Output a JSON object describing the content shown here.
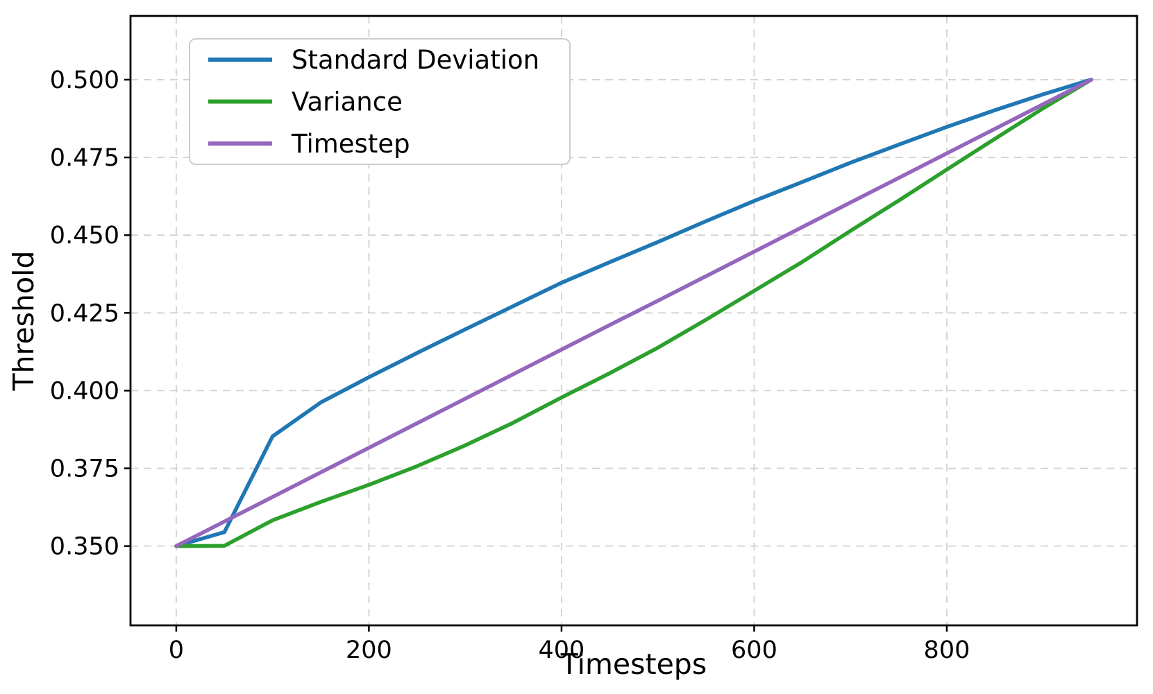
{
  "chart_data": {
    "type": "line",
    "title": "",
    "xlabel": "Timesteps",
    "ylabel": "Threshold",
    "x": [
      0,
      50,
      100,
      150,
      200,
      250,
      300,
      350,
      400,
      450,
      500,
      550,
      600,
      650,
      700,
      750,
      800,
      850,
      900,
      950
    ],
    "series": [
      {
        "name": "Standard Deviation",
        "color": "#1f77b4",
        "values": [
          0.35,
          0.3545,
          0.3853,
          0.3962,
          0.4043,
          0.4121,
          0.4197,
          0.4272,
          0.4347,
          0.4413,
          0.4478,
          0.4545,
          0.461,
          0.4671,
          0.4733,
          0.4791,
          0.4848,
          0.4902,
          0.4953,
          0.5
        ]
      },
      {
        "name": "Variance",
        "color": "#2ca02c",
        "values": [
          0.35,
          0.3501,
          0.3583,
          0.3642,
          0.3697,
          0.3757,
          0.3824,
          0.3897,
          0.3978,
          0.4056,
          0.4138,
          0.4228,
          0.4321,
          0.4414,
          0.4514,
          0.4611,
          0.4711,
          0.481,
          0.4908,
          0.5
        ]
      },
      {
        "name": "Timestep",
        "color": "#9467bd",
        "values": [
          0.35,
          0.3579,
          0.3658,
          0.3737,
          0.3816,
          0.3895,
          0.3974,
          0.4053,
          0.4132,
          0.4211,
          0.4289,
          0.4368,
          0.4447,
          0.4526,
          0.4605,
          0.4684,
          0.4763,
          0.4842,
          0.4921,
          0.5
        ]
      }
    ],
    "xlim": [
      -47.5,
      997.5
    ],
    "ylim": [
      0.3245,
      0.5205
    ],
    "xticks": [
      0,
      200,
      400,
      600,
      800
    ],
    "yticks": [
      0.35,
      0.375,
      0.4,
      0.425,
      0.45,
      0.475,
      0.5
    ],
    "ytick_decimals": 3,
    "grid": true,
    "grid_style": "dashed",
    "grid_color": "#d2d2d2",
    "spine_color": "#000000",
    "background": "#ffffff",
    "legend_position": "upper left",
    "line_width": 5.5
  }
}
